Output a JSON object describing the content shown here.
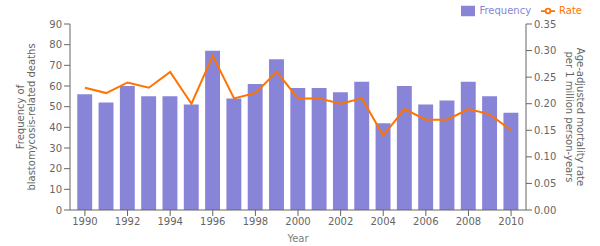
{
  "chart_data": {
    "type": "bar",
    "xlabel": "Year",
    "ylabel": "Frequency of\nblastomycosis-related deaths",
    "y2label": "Age-adjusted mortality rate\nper 1 million person-years",
    "x": [
      1990,
      1991,
      1992,
      1993,
      1994,
      1995,
      1996,
      1997,
      1998,
      1999,
      2000,
      2001,
      2002,
      2003,
      2004,
      2005,
      2006,
      2007,
      2008,
      2009,
      2010
    ],
    "series": [
      {
        "name": "Frequency",
        "type": "bar",
        "color": "#8884d8",
        "values": [
          56,
          52,
          60,
          55,
          55,
          51,
          77,
          54,
          61,
          73,
          59,
          59,
          57,
          62,
          42,
          60,
          51,
          53,
          62,
          55,
          47
        ]
      },
      {
        "name": "Rate",
        "type": "line",
        "axis": "y2",
        "color": "#ff7300",
        "values": [
          0.23,
          0.22,
          0.24,
          0.23,
          0.26,
          0.2,
          0.29,
          0.21,
          0.22,
          0.26,
          0.21,
          0.21,
          0.2,
          0.21,
          0.14,
          0.19,
          0.17,
          0.17,
          0.19,
          0.18,
          0.15
        ]
      }
    ],
    "xlim": [
      1989.3,
      2010.7
    ],
    "xticks": [
      1990,
      1992,
      1994,
      1996,
      1998,
      2000,
      2002,
      2004,
      2006,
      2008,
      2010
    ],
    "ylim": [
      0,
      90
    ],
    "yticks": [
      0,
      10,
      20,
      30,
      40,
      50,
      60,
      70,
      80,
      90
    ],
    "y2lim": [
      0.0,
      0.35
    ],
    "y2ticks": [
      {
        "value": 0,
        "label": "0.00"
      },
      0.05,
      {
        "value": 0.1,
        "label": "0.10"
      },
      0.15,
      {
        "value": 0.2,
        "label": "0.20"
      },
      0.25,
      {
        "value": 0.3,
        "label": "0.30"
      },
      0.35
    ],
    "legend": "upper right",
    "grid": false
  }
}
